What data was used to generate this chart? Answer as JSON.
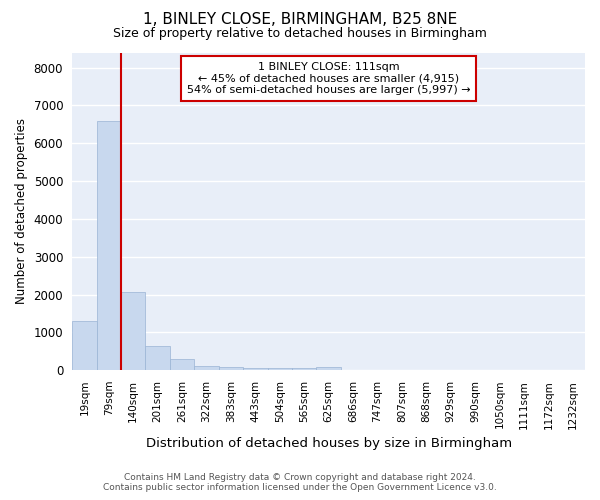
{
  "title": "1, BINLEY CLOSE, BIRMINGHAM, B25 8NE",
  "subtitle": "Size of property relative to detached houses in Birmingham",
  "xlabel": "Distribution of detached houses by size in Birmingham",
  "ylabel": "Number of detached properties",
  "bar_color": "#c8d8ee",
  "bar_edge_color": "#9ab4d4",
  "red_line_color": "#cc0000",
  "background_color": "#e8eef8",
  "grid_color": "#ffffff",
  "annotation_text_line1": "1 BINLEY CLOSE: 111sqm",
  "annotation_text_line2": "← 45% of detached houses are smaller (4,915)",
  "annotation_text_line3": "54% of semi-detached houses are larger (5,997) →",
  "property_size": 111,
  "bins": [
    19,
    79,
    140,
    201,
    261,
    322,
    383,
    443,
    504,
    565,
    625,
    686,
    747,
    807,
    868,
    929,
    990,
    1050,
    1111,
    1172,
    1232
  ],
  "bin_labels": [
    "19sqm",
    "79sqm",
    "140sqm",
    "201sqm",
    "261sqm",
    "322sqm",
    "383sqm",
    "443sqm",
    "504sqm",
    "565sqm",
    "625sqm",
    "686sqm",
    "747sqm",
    "807sqm",
    "868sqm",
    "929sqm",
    "990sqm",
    "1050sqm",
    "1111sqm",
    "1172sqm",
    "1232sqm"
  ],
  "bar_heights": [
    1310,
    6600,
    2060,
    650,
    295,
    120,
    80,
    60,
    50,
    50,
    80,
    5,
    5,
    3,
    2,
    2,
    1,
    1,
    1,
    1,
    0
  ],
  "ylim": [
    0,
    8400
  ],
  "yticks": [
    0,
    1000,
    2000,
    3000,
    4000,
    5000,
    6000,
    7000,
    8000
  ],
  "footer_line1": "Contains HM Land Registry data © Crown copyright and database right 2024.",
  "footer_line2": "Contains public sector information licensed under the Open Government Licence v3.0.",
  "figsize": [
    6.0,
    5.0
  ],
  "dpi": 100
}
